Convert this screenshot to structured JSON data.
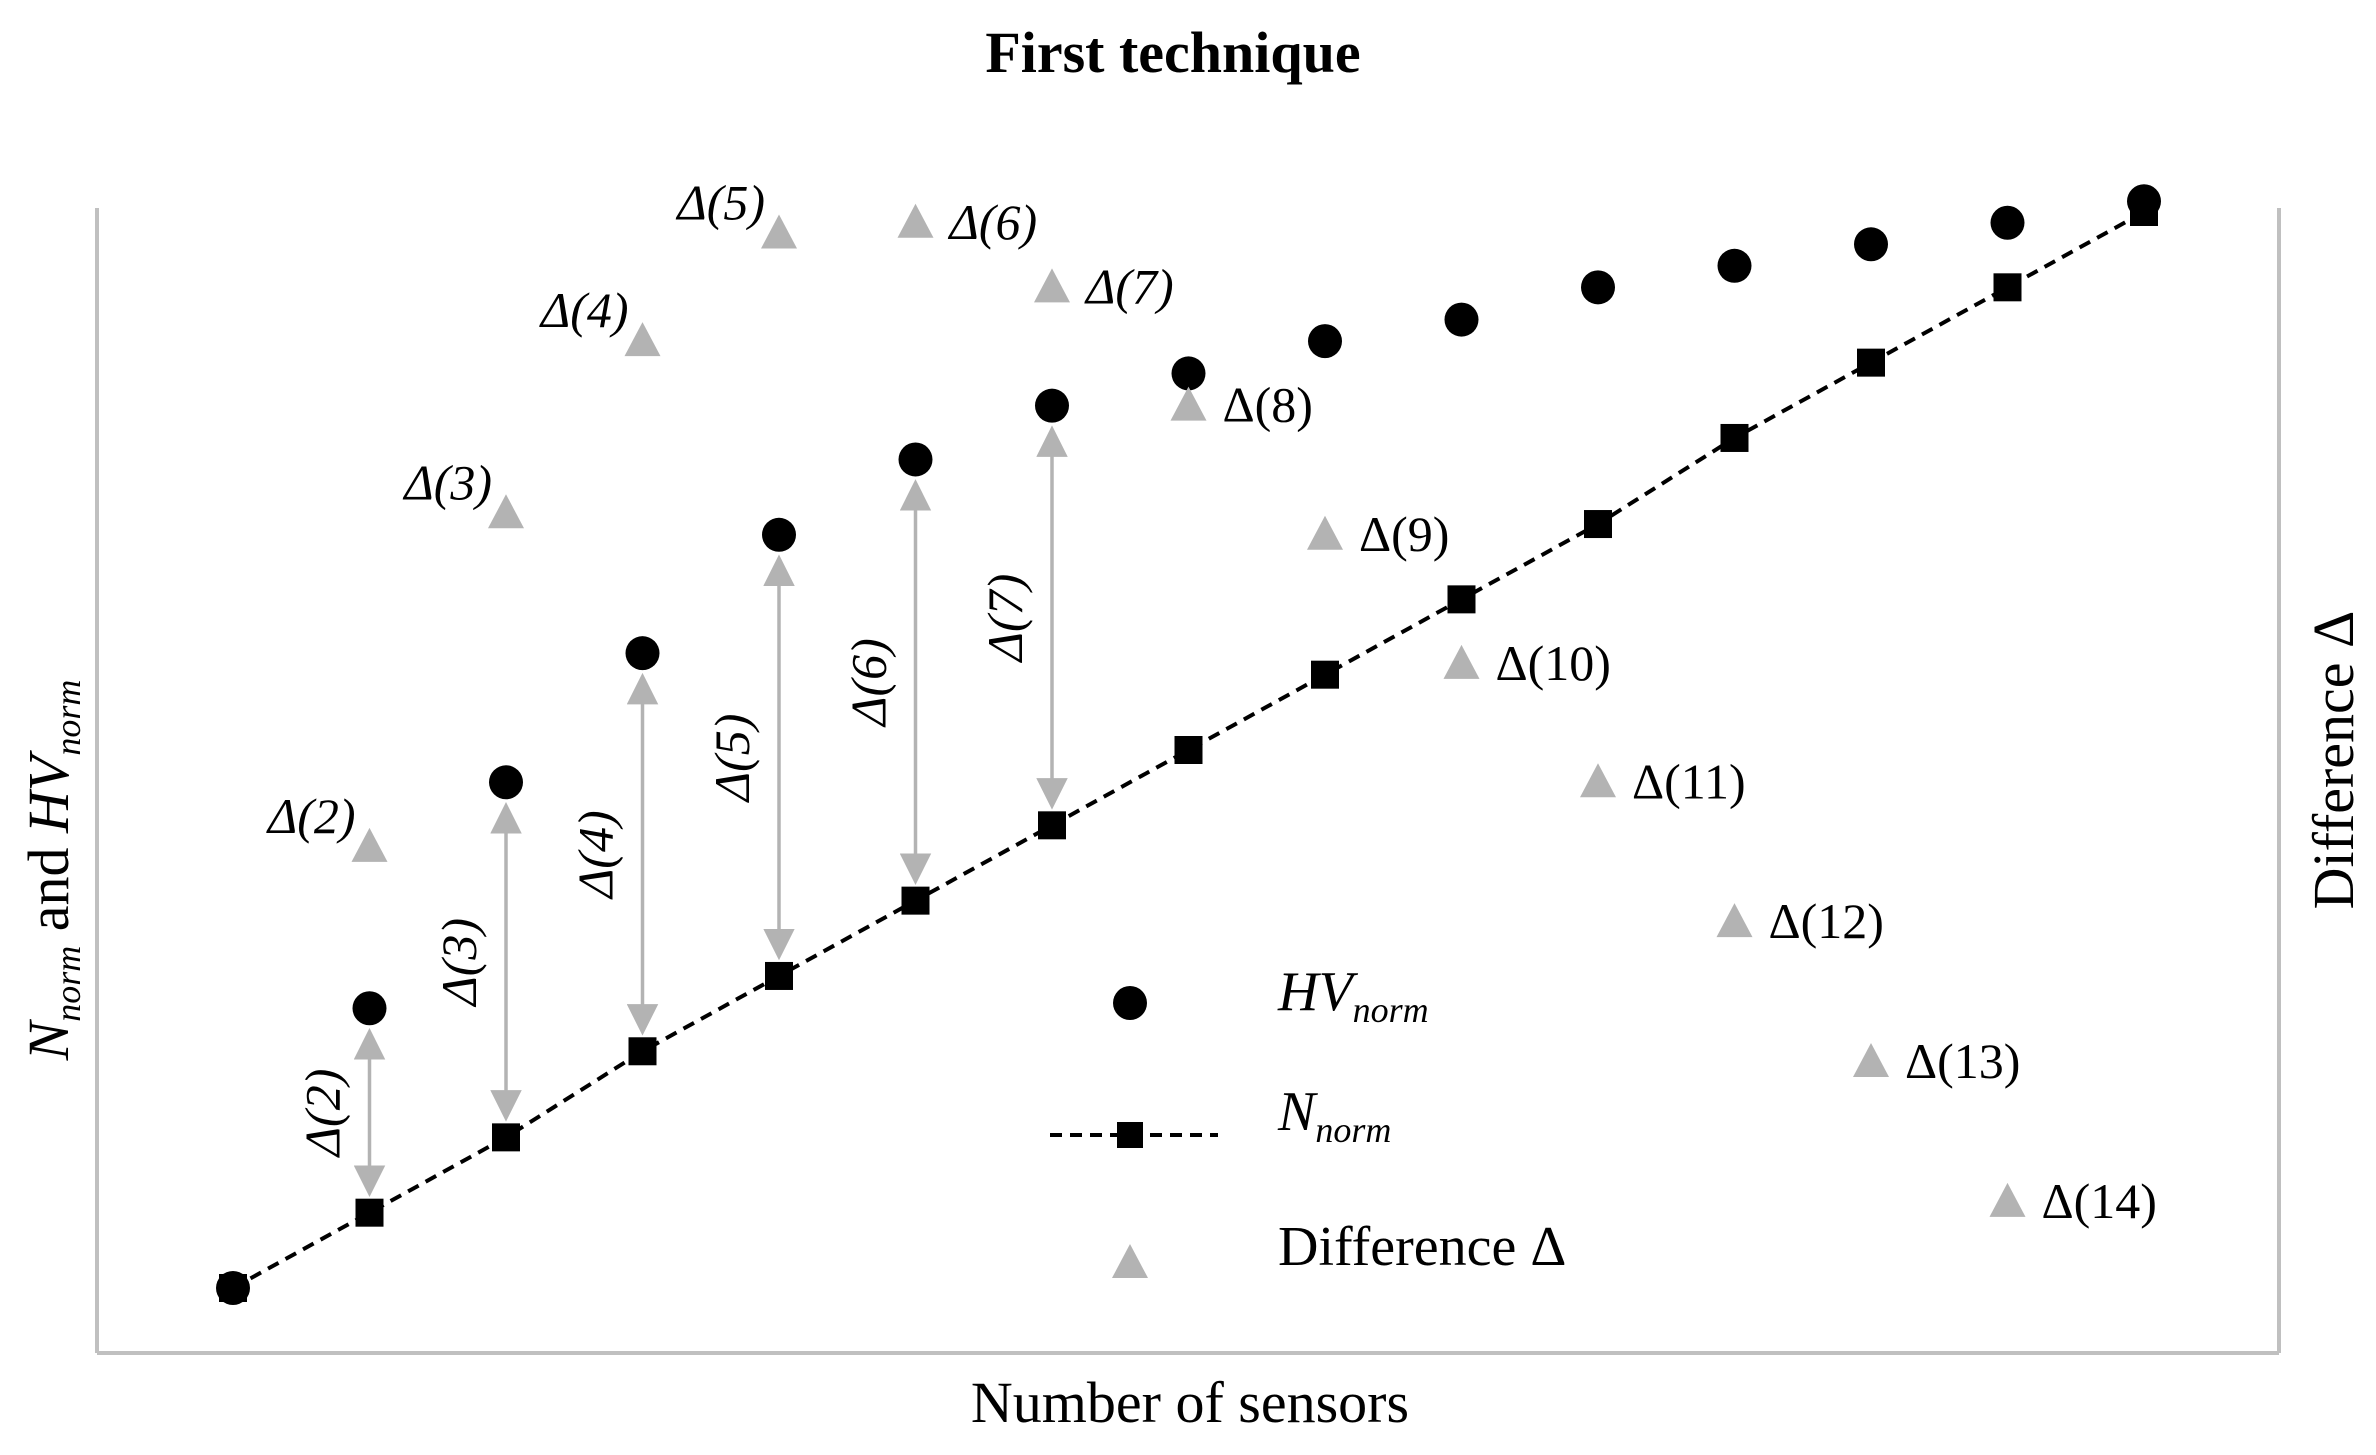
{
  "chart_data": {
    "type": "scatter",
    "title": "First technique",
    "xlabel": "Number of sensors",
    "ylabel_main": "N",
    "ylabel_main_sub": "norm",
    "ylabel_mid": " and ",
    "ylabel_second": "HV",
    "ylabel_second_sub": "norm",
    "y2label": "Difference Δ",
    "grid": false,
    "legend_position": "center",
    "x": [
      1,
      2,
      3,
      4,
      5,
      6,
      7,
      8,
      9,
      10,
      11,
      12,
      13,
      14,
      15
    ],
    "series": [
      {
        "name": "HVnorm",
        "legend_main": "HV",
        "legend_sub": "norm",
        "marker": "circle",
        "color": "#000000",
        "values": [
          0.0,
          0.26,
          0.47,
          0.59,
          0.7,
          0.77,
          0.82,
          0.85,
          0.88,
          0.9,
          0.93,
          0.95,
          0.97,
          0.99,
          1.01
        ]
      },
      {
        "name": "Nnorm",
        "legend_main": "N",
        "legend_sub": "norm",
        "marker": "square",
        "line": "dashed",
        "color": "#000000",
        "values": [
          0.0,
          0.07,
          0.14,
          0.22,
          0.29,
          0.36,
          0.43,
          0.5,
          0.57,
          0.64,
          0.71,
          0.79,
          0.86,
          0.93,
          1.0
        ]
      },
      {
        "name": "Difference Δ",
        "legend_main": "Difference Δ",
        "marker": "triangle",
        "color": "#b3b3b3",
        "axis": "secondary",
        "x": [
          2,
          3,
          4,
          5,
          6,
          7,
          8,
          9,
          10,
          11,
          12,
          13,
          14
        ],
        "values": [
          0.41,
          0.72,
          0.88,
          0.98,
          0.99,
          0.93,
          0.82,
          0.7,
          0.58,
          0.47,
          0.34,
          0.21,
          0.08
        ],
        "labels": [
          "Δ(2)",
          "Δ(3)",
          "Δ(4)",
          "Δ(5)",
          "Δ(6)",
          "Δ(7)",
          "Δ(8)",
          "Δ(9)",
          "Δ(10)",
          "Δ(11)",
          "Δ(12)",
          "Δ(13)",
          "Δ(14)"
        ],
        "label_italic": [
          true,
          true,
          true,
          true,
          true,
          true,
          false,
          false,
          false,
          false,
          false,
          false,
          false
        ]
      }
    ],
    "arrows": [
      {
        "x": 2,
        "label": "Δ(2)"
      },
      {
        "x": 3,
        "label": "Δ(3)"
      },
      {
        "x": 4,
        "label": "Δ(4)"
      },
      {
        "x": 5,
        "label": "Δ(5)"
      },
      {
        "x": 6,
        "label": "Δ(6)"
      },
      {
        "x": 7,
        "label": "Δ(7)"
      }
    ]
  }
}
